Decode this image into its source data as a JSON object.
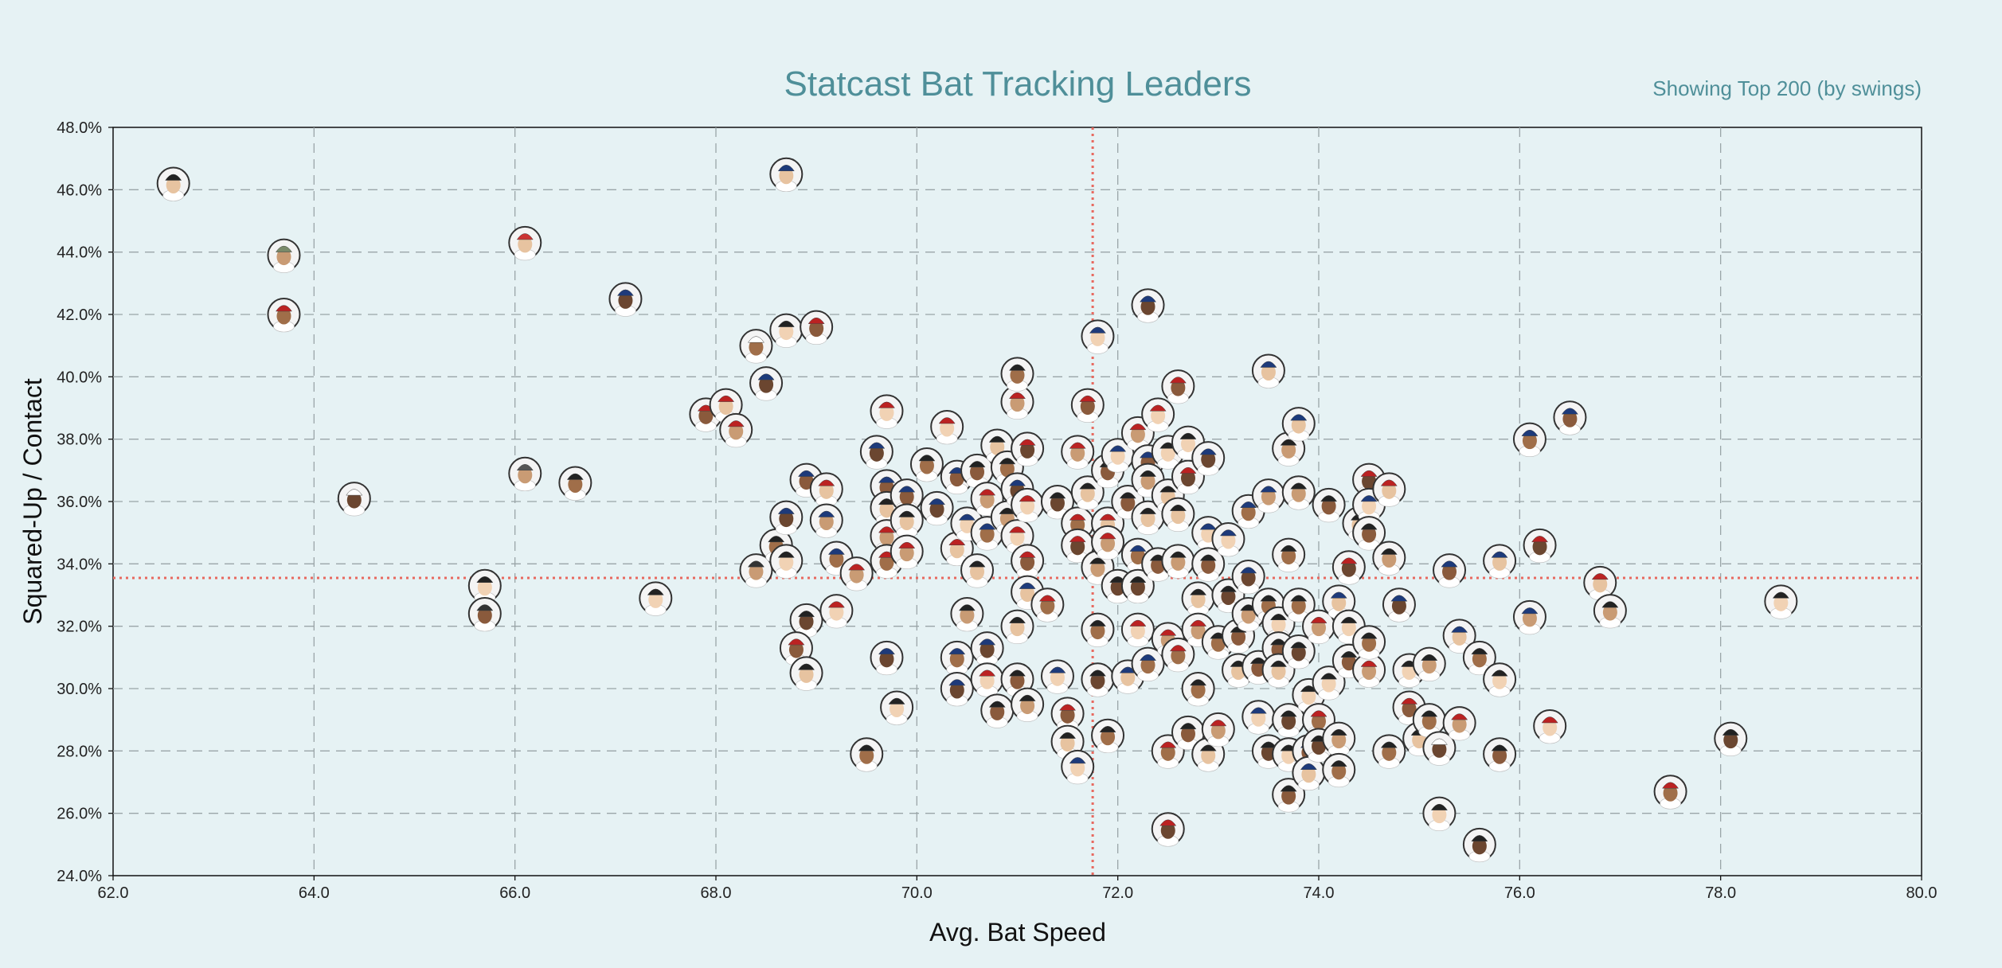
{
  "header": {
    "title": "Statcast Bat Tracking Leaders",
    "subtitle": "Showing Top 200 (by swings)"
  },
  "chart_data": {
    "type": "scatter",
    "title": "Statcast Bat Tracking Leaders",
    "subtitle": "Showing Top 200 (by swings)",
    "xlabel": "Avg. Bat Speed",
    "ylabel": "Squared-Up / Contact",
    "xlim": [
      62.0,
      80.0
    ],
    "ylim": [
      24.0,
      48.0
    ],
    "xticks": [
      "62.0",
      "64.0",
      "66.0",
      "68.0",
      "70.0",
      "72.0",
      "74.0",
      "76.0",
      "78.0",
      "80.0"
    ],
    "yticks": [
      "24.0%",
      "26.0%",
      "28.0%",
      "30.0%",
      "32.0%",
      "34.0%",
      "36.0%",
      "38.0%",
      "40.0%",
      "42.0%",
      "44.0%",
      "46.0%",
      "48.0%"
    ],
    "grid": true,
    "reference_lines": {
      "avg_bat_speed": 71.75,
      "squared_up_contact": 33.55
    },
    "point_marker": "player-headshot",
    "colors": {
      "reference_line": "#e8695f",
      "grid": "#9aa5a8",
      "marker_border": "#333333"
    },
    "points": [
      {
        "x": 62.6,
        "y": 46.2,
        "cap": "#222"
      },
      {
        "x": 63.7,
        "y": 43.9,
        "cap": "#7a8a6a"
      },
      {
        "x": 63.7,
        "y": 42.0,
        "cap": "#b22"
      },
      {
        "x": 64.4,
        "y": 36.1,
        "cap": "#fff"
      },
      {
        "x": 65.7,
        "y": 33.3,
        "cap": "#222"
      },
      {
        "x": 65.7,
        "y": 32.4,
        "cap": "#333"
      },
      {
        "x": 66.1,
        "y": 44.3,
        "cap": "#c33"
      },
      {
        "x": 66.1,
        "y": 36.9,
        "cap": "#555"
      },
      {
        "x": 66.6,
        "y": 36.6,
        "cap": "#222"
      },
      {
        "x": 67.1,
        "y": 42.5,
        "cap": "#1e3a7a"
      },
      {
        "x": 67.4,
        "y": 32.9,
        "cap": "#222"
      },
      {
        "x": 67.9,
        "y": 38.8,
        "cap": "#b22"
      },
      {
        "x": 68.1,
        "y": 39.1,
        "cap": "#b22"
      },
      {
        "x": 68.2,
        "y": 38.3,
        "cap": "#b22"
      },
      {
        "x": 68.4,
        "y": 41.0,
        "cap": "#fff"
      },
      {
        "x": 68.5,
        "y": 39.8,
        "cap": "#1e3a7a"
      },
      {
        "x": 68.7,
        "y": 41.5,
        "cap": "#222"
      },
      {
        "x": 69.0,
        "y": 41.6,
        "cap": "#b22"
      },
      {
        "x": 68.7,
        "y": 46.5,
        "cap": "#1e3a7a"
      },
      {
        "x": 68.4,
        "y": 33.8,
        "cap": "#333"
      },
      {
        "x": 68.6,
        "y": 34.6,
        "cap": "#222"
      },
      {
        "x": 68.7,
        "y": 35.5,
        "cap": "#1e3a7a"
      },
      {
        "x": 68.7,
        "y": 34.1,
        "cap": "#222"
      },
      {
        "x": 68.9,
        "y": 36.7,
        "cap": "#1e3a7a"
      },
      {
        "x": 69.1,
        "y": 36.4,
        "cap": "#b22"
      },
      {
        "x": 69.1,
        "y": 35.4,
        "cap": "#1e3a7a"
      },
      {
        "x": 69.2,
        "y": 34.2,
        "cap": "#1e3a7a"
      },
      {
        "x": 68.9,
        "y": 32.2,
        "cap": "#222"
      },
      {
        "x": 69.2,
        "y": 32.5,
        "cap": "#b22"
      },
      {
        "x": 68.8,
        "y": 31.3,
        "cap": "#b22"
      },
      {
        "x": 68.9,
        "y": 30.5,
        "cap": "#222"
      },
      {
        "x": 69.4,
        "y": 33.7,
        "cap": "#b22"
      },
      {
        "x": 69.5,
        "y": 27.9,
        "cap": "#222"
      },
      {
        "x": 69.6,
        "y": 37.6,
        "cap": "#1e3a7a"
      },
      {
        "x": 69.7,
        "y": 38.9,
        "cap": "#b22"
      },
      {
        "x": 69.7,
        "y": 36.5,
        "cap": "#1e3a7a"
      },
      {
        "x": 69.7,
        "y": 35.8,
        "cap": "#222"
      },
      {
        "x": 69.7,
        "y": 34.9,
        "cap": "#b22"
      },
      {
        "x": 69.7,
        "y": 34.1,
        "cap": "#b22"
      },
      {
        "x": 69.7,
        "y": 31.0,
        "cap": "#1e3a7a"
      },
      {
        "x": 69.8,
        "y": 29.4,
        "cap": "#222"
      },
      {
        "x": 69.9,
        "y": 36.2,
        "cap": "#1e3a7a"
      },
      {
        "x": 69.9,
        "y": 35.4,
        "cap": "#222"
      },
      {
        "x": 69.9,
        "y": 34.4,
        "cap": "#b22"
      },
      {
        "x": 70.1,
        "y": 37.2,
        "cap": "#222"
      },
      {
        "x": 70.2,
        "y": 35.8,
        "cap": "#1e3a7a"
      },
      {
        "x": 70.3,
        "y": 38.4,
        "cap": "#b22"
      },
      {
        "x": 70.4,
        "y": 36.8,
        "cap": "#1e3a7a"
      },
      {
        "x": 70.4,
        "y": 34.5,
        "cap": "#b22"
      },
      {
        "x": 70.5,
        "y": 32.4,
        "cap": "#222"
      },
      {
        "x": 70.4,
        "y": 31.0,
        "cap": "#1e3a7a"
      },
      {
        "x": 70.4,
        "y": 30.0,
        "cap": "#1e3a7a"
      },
      {
        "x": 70.5,
        "y": 35.3,
        "cap": "#1e3a7a"
      },
      {
        "x": 70.6,
        "y": 37.0,
        "cap": "#222"
      },
      {
        "x": 70.6,
        "y": 33.8,
        "cap": "#222"
      },
      {
        "x": 70.7,
        "y": 36.1,
        "cap": "#b22"
      },
      {
        "x": 70.7,
        "y": 35.0,
        "cap": "#1e3a7a"
      },
      {
        "x": 70.7,
        "y": 31.3,
        "cap": "#1e3a7a"
      },
      {
        "x": 70.7,
        "y": 30.3,
        "cap": "#b22"
      },
      {
        "x": 70.8,
        "y": 29.3,
        "cap": "#222"
      },
      {
        "x": 70.8,
        "y": 37.8,
        "cap": "#222"
      },
      {
        "x": 70.9,
        "y": 35.5,
        "cap": "#222"
      },
      {
        "x": 70.9,
        "y": 37.1,
        "cap": "#222"
      },
      {
        "x": 71.0,
        "y": 36.4,
        "cap": "#1e3a7a"
      },
      {
        "x": 71.0,
        "y": 34.9,
        "cap": "#b22"
      },
      {
        "x": 71.0,
        "y": 30.3,
        "cap": "#222"
      },
      {
        "x": 71.0,
        "y": 32.0,
        "cap": "#222"
      },
      {
        "x": 71.0,
        "y": 39.2,
        "cap": "#b22"
      },
      {
        "x": 71.0,
        "y": 40.1,
        "cap": "#222"
      },
      {
        "x": 71.1,
        "y": 37.7,
        "cap": "#b22"
      },
      {
        "x": 71.1,
        "y": 35.9,
        "cap": "#b22"
      },
      {
        "x": 71.1,
        "y": 34.1,
        "cap": "#b22"
      },
      {
        "x": 71.1,
        "y": 33.1,
        "cap": "#1e3a7a"
      },
      {
        "x": 71.1,
        "y": 29.5,
        "cap": "#222"
      },
      {
        "x": 71.3,
        "y": 32.7,
        "cap": "#b22"
      },
      {
        "x": 71.4,
        "y": 36.0,
        "cap": "#222"
      },
      {
        "x": 71.4,
        "y": 30.4,
        "cap": "#1e3a7a"
      },
      {
        "x": 71.5,
        "y": 29.2,
        "cap": "#b22"
      },
      {
        "x": 71.5,
        "y": 28.3,
        "cap": "#222"
      },
      {
        "x": 71.6,
        "y": 37.6,
        "cap": "#b22"
      },
      {
        "x": 71.6,
        "y": 35.3,
        "cap": "#b22"
      },
      {
        "x": 71.6,
        "y": 34.6,
        "cap": "#b22"
      },
      {
        "x": 71.6,
        "y": 27.5,
        "cap": "#1e3a7a"
      },
      {
        "x": 71.7,
        "y": 39.1,
        "cap": "#b22"
      },
      {
        "x": 71.7,
        "y": 36.3,
        "cap": "#222"
      },
      {
        "x": 71.8,
        "y": 33.9,
        "cap": "#222"
      },
      {
        "x": 71.8,
        "y": 31.9,
        "cap": "#222"
      },
      {
        "x": 71.8,
        "y": 30.3,
        "cap": "#222"
      },
      {
        "x": 71.8,
        "y": 41.3,
        "cap": "#1e3a7a"
      },
      {
        "x": 71.9,
        "y": 37.0,
        "cap": "#222"
      },
      {
        "x": 71.9,
        "y": 35.3,
        "cap": "#b22"
      },
      {
        "x": 71.9,
        "y": 34.7,
        "cap": "#b22"
      },
      {
        "x": 71.9,
        "y": 28.5,
        "cap": "#222"
      },
      {
        "x": 72.0,
        "y": 33.3,
        "cap": "#222"
      },
      {
        "x": 72.0,
        "y": 37.5,
        "cap": "#1e3a7a"
      },
      {
        "x": 72.1,
        "y": 36.0,
        "cap": "#222"
      },
      {
        "x": 72.1,
        "y": 30.4,
        "cap": "#1e3a7a"
      },
      {
        "x": 72.2,
        "y": 38.2,
        "cap": "#b22"
      },
      {
        "x": 72.2,
        "y": 34.3,
        "cap": "#1e3a7a"
      },
      {
        "x": 72.2,
        "y": 33.3,
        "cap": "#222"
      },
      {
        "x": 72.2,
        "y": 31.9,
        "cap": "#b22"
      },
      {
        "x": 72.3,
        "y": 37.3,
        "cap": "#1e3a7a"
      },
      {
        "x": 72.3,
        "y": 35.5,
        "cap": "#222"
      },
      {
        "x": 72.3,
        "y": 36.7,
        "cap": "#222"
      },
      {
        "x": 72.3,
        "y": 30.8,
        "cap": "#1e3a7a"
      },
      {
        "x": 72.3,
        "y": 42.3,
        "cap": "#1e3a7a"
      },
      {
        "x": 72.4,
        "y": 38.8,
        "cap": "#b22"
      },
      {
        "x": 72.4,
        "y": 34.0,
        "cap": "#222"
      },
      {
        "x": 72.5,
        "y": 36.2,
        "cap": "#222"
      },
      {
        "x": 72.5,
        "y": 31.6,
        "cap": "#b22"
      },
      {
        "x": 72.5,
        "y": 28.0,
        "cap": "#b22"
      },
      {
        "x": 72.5,
        "y": 25.5,
        "cap": "#b22"
      },
      {
        "x": 72.5,
        "y": 37.6,
        "cap": "#222"
      },
      {
        "x": 72.6,
        "y": 39.7,
        "cap": "#b22"
      },
      {
        "x": 72.6,
        "y": 35.6,
        "cap": "#222"
      },
      {
        "x": 72.6,
        "y": 34.1,
        "cap": "#222"
      },
      {
        "x": 72.6,
        "y": 31.1,
        "cap": "#b22"
      },
      {
        "x": 72.7,
        "y": 36.8,
        "cap": "#b22"
      },
      {
        "x": 72.7,
        "y": 37.9,
        "cap": "#222"
      },
      {
        "x": 72.7,
        "y": 28.6,
        "cap": "#222"
      },
      {
        "x": 72.8,
        "y": 32.9,
        "cap": "#222"
      },
      {
        "x": 72.8,
        "y": 31.9,
        "cap": "#b22"
      },
      {
        "x": 72.8,
        "y": 30.0,
        "cap": "#222"
      },
      {
        "x": 72.9,
        "y": 37.4,
        "cap": "#1e3a7a"
      },
      {
        "x": 72.9,
        "y": 35.0,
        "cap": "#1e3a7a"
      },
      {
        "x": 72.9,
        "y": 34.0,
        "cap": "#222"
      },
      {
        "x": 72.9,
        "y": 27.9,
        "cap": "#222"
      },
      {
        "x": 73.0,
        "y": 28.7,
        "cap": "#b22"
      },
      {
        "x": 73.0,
        "y": 31.5,
        "cap": "#222"
      },
      {
        "x": 73.1,
        "y": 33.0,
        "cap": "#222"
      },
      {
        "x": 73.1,
        "y": 34.8,
        "cap": "#1e3a7a"
      },
      {
        "x": 73.2,
        "y": 31.7,
        "cap": "#222"
      },
      {
        "x": 73.2,
        "y": 30.6,
        "cap": "#222"
      },
      {
        "x": 73.3,
        "y": 32.4,
        "cap": "#222"
      },
      {
        "x": 73.3,
        "y": 35.7,
        "cap": "#1e3a7a"
      },
      {
        "x": 73.3,
        "y": 33.6,
        "cap": "#1e3a7a"
      },
      {
        "x": 73.4,
        "y": 29.1,
        "cap": "#1e3a7a"
      },
      {
        "x": 73.4,
        "y": 30.7,
        "cap": "#222"
      },
      {
        "x": 73.5,
        "y": 40.2,
        "cap": "#1e3a7a"
      },
      {
        "x": 73.5,
        "y": 36.2,
        "cap": "#1e3a7a"
      },
      {
        "x": 73.5,
        "y": 32.7,
        "cap": "#222"
      },
      {
        "x": 73.5,
        "y": 28.0,
        "cap": "#222"
      },
      {
        "x": 73.6,
        "y": 32.1,
        "cap": "#222"
      },
      {
        "x": 73.6,
        "y": 31.3,
        "cap": "#222"
      },
      {
        "x": 73.6,
        "y": 30.6,
        "cap": "#222"
      },
      {
        "x": 73.7,
        "y": 37.7,
        "cap": "#222"
      },
      {
        "x": 73.7,
        "y": 34.3,
        "cap": "#222"
      },
      {
        "x": 73.7,
        "y": 29.0,
        "cap": "#222"
      },
      {
        "x": 73.7,
        "y": 27.9,
        "cap": "#222"
      },
      {
        "x": 73.7,
        "y": 26.6,
        "cap": "#222"
      },
      {
        "x": 73.8,
        "y": 38.5,
        "cap": "#1e3a7a"
      },
      {
        "x": 73.8,
        "y": 36.3,
        "cap": "#222"
      },
      {
        "x": 73.8,
        "y": 32.7,
        "cap": "#222"
      },
      {
        "x": 73.8,
        "y": 31.2,
        "cap": "#222"
      },
      {
        "x": 73.9,
        "y": 29.8,
        "cap": "#222"
      },
      {
        "x": 73.9,
        "y": 28.0,
        "cap": "#1e3a7a"
      },
      {
        "x": 73.9,
        "y": 27.3,
        "cap": "#1e3a7a"
      },
      {
        "x": 74.0,
        "y": 32.0,
        "cap": "#b22"
      },
      {
        "x": 74.0,
        "y": 29.0,
        "cap": "#b22"
      },
      {
        "x": 74.0,
        "y": 28.2,
        "cap": "#222"
      },
      {
        "x": 74.1,
        "y": 30.2,
        "cap": "#222"
      },
      {
        "x": 74.1,
        "y": 35.9,
        "cap": "#222"
      },
      {
        "x": 74.2,
        "y": 32.8,
        "cap": "#1e3a7a"
      },
      {
        "x": 74.2,
        "y": 28.4,
        "cap": "#222"
      },
      {
        "x": 74.2,
        "y": 27.4,
        "cap": "#222"
      },
      {
        "x": 74.3,
        "y": 33.9,
        "cap": "#b22"
      },
      {
        "x": 74.3,
        "y": 32.0,
        "cap": "#222"
      },
      {
        "x": 74.3,
        "y": 30.9,
        "cap": "#222"
      },
      {
        "x": 74.4,
        "y": 35.3,
        "cap": "#222"
      },
      {
        "x": 74.5,
        "y": 30.6,
        "cap": "#b22"
      },
      {
        "x": 74.5,
        "y": 31.5,
        "cap": "#222"
      },
      {
        "x": 74.5,
        "y": 36.7,
        "cap": "#b22"
      },
      {
        "x": 74.5,
        "y": 35.9,
        "cap": "#1e3a7a"
      },
      {
        "x": 74.5,
        "y": 35.0,
        "cap": "#222"
      },
      {
        "x": 74.7,
        "y": 36.4,
        "cap": "#b22"
      },
      {
        "x": 74.7,
        "y": 34.2,
        "cap": "#222"
      },
      {
        "x": 74.7,
        "y": 28.0,
        "cap": "#222"
      },
      {
        "x": 74.8,
        "y": 32.7,
        "cap": "#1e3a7a"
      },
      {
        "x": 74.9,
        "y": 30.6,
        "cap": "#222"
      },
      {
        "x": 74.9,
        "y": 29.4,
        "cap": "#b22"
      },
      {
        "x": 75.0,
        "y": 28.4,
        "cap": "#222"
      },
      {
        "x": 75.1,
        "y": 30.8,
        "cap": "#222"
      },
      {
        "x": 75.1,
        "y": 29.0,
        "cap": "#222"
      },
      {
        "x": 75.2,
        "y": 28.1,
        "cap": "#fff"
      },
      {
        "x": 75.2,
        "y": 26.0,
        "cap": "#222"
      },
      {
        "x": 75.3,
        "y": 33.8,
        "cap": "#1e3a7a"
      },
      {
        "x": 75.4,
        "y": 31.7,
        "cap": "#1e3a7a"
      },
      {
        "x": 75.4,
        "y": 28.9,
        "cap": "#b22"
      },
      {
        "x": 75.6,
        "y": 31.0,
        "cap": "#222"
      },
      {
        "x": 75.6,
        "y": 25.0,
        "cap": "#222"
      },
      {
        "x": 75.8,
        "y": 30.3,
        "cap": "#222"
      },
      {
        "x": 75.8,
        "y": 27.9,
        "cap": "#222"
      },
      {
        "x": 75.8,
        "y": 34.1,
        "cap": "#1e3a7a"
      },
      {
        "x": 76.1,
        "y": 32.3,
        "cap": "#1e3a7a"
      },
      {
        "x": 76.1,
        "y": 38.0,
        "cap": "#1e3a7a"
      },
      {
        "x": 76.2,
        "y": 34.6,
        "cap": "#b22"
      },
      {
        "x": 76.3,
        "y": 28.8,
        "cap": "#b22"
      },
      {
        "x": 76.5,
        "y": 38.7,
        "cap": "#1e3a7a"
      },
      {
        "x": 76.8,
        "y": 33.4,
        "cap": "#b22"
      },
      {
        "x": 76.9,
        "y": 32.5,
        "cap": "#222"
      },
      {
        "x": 77.5,
        "y": 26.7,
        "cap": "#b22"
      },
      {
        "x": 78.1,
        "y": 28.4,
        "cap": "#222"
      },
      {
        "x": 78.6,
        "y": 32.8,
        "cap": "#222"
      }
    ]
  }
}
